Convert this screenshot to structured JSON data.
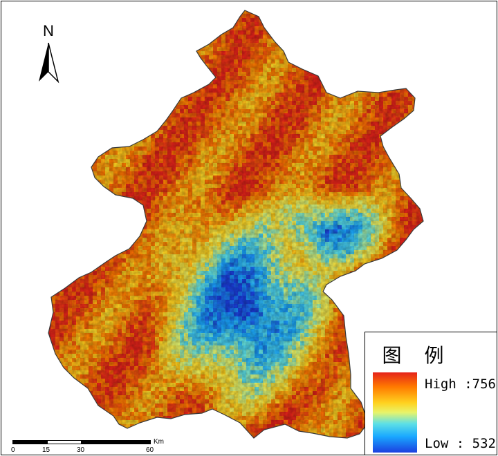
{
  "north_arrow": {
    "label": "N"
  },
  "legend": {
    "title": "图 例",
    "high_label": "High :756",
    "low_label": "Low : 532",
    "colors": [
      "#e5231a",
      "#ff7a00",
      "#ffd21f",
      "#e8f46a",
      "#5de0e6",
      "#1aa8ff",
      "#1b3fe0"
    ]
  },
  "scale_bar": {
    "unit": "Km",
    "ticks": [
      "0",
      "15",
      "30",
      "60"
    ]
  },
  "map": {
    "boundary_color": "#3a3a3a",
    "high_value": 756,
    "low_value": 532
  }
}
